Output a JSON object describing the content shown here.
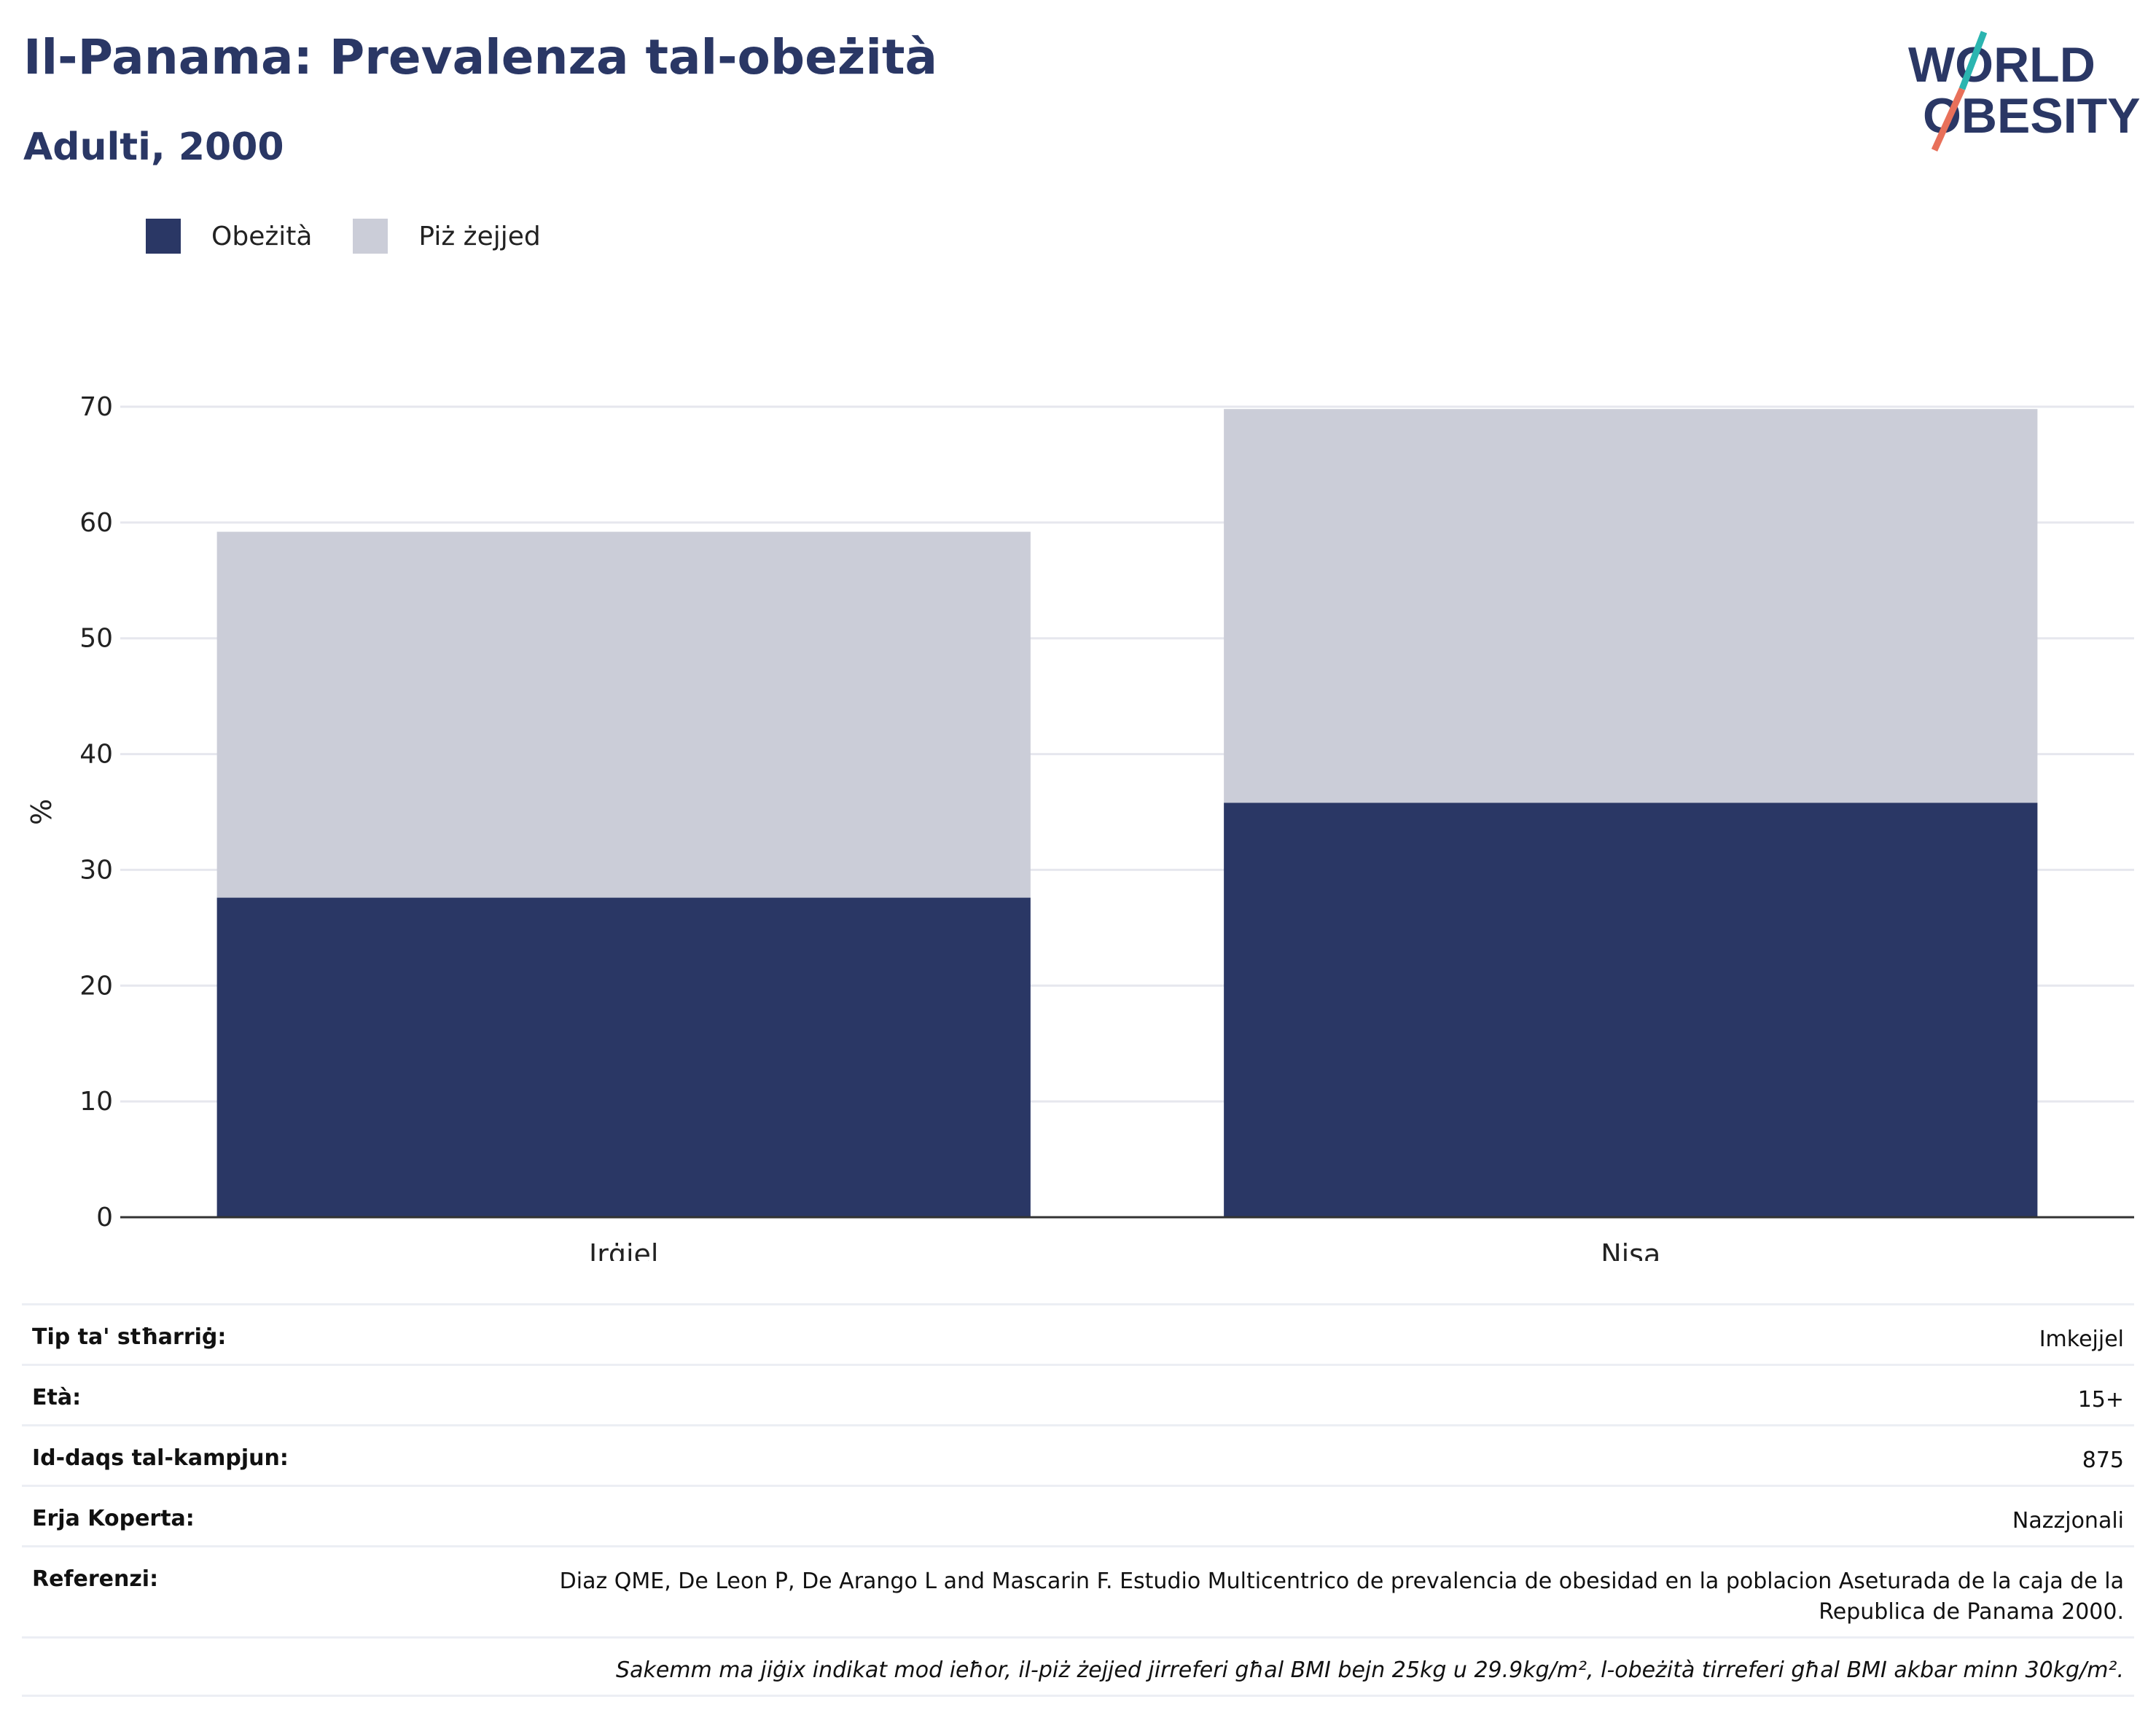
{
  "header": {
    "title": "Il-Panama: Prevalenza tal-obeżità",
    "subtitle": "Adulti, 2000"
  },
  "logo": {
    "line1": "WORLD",
    "line2": "OBESITY",
    "colors": {
      "text": "#2a3765",
      "slash_top": "#2bb5b0",
      "slash_bottom": "#e8705a"
    }
  },
  "colors": {
    "obesity": "#2a3765",
    "overweight": "#cbcdd8",
    "grid": "#e6e7ee",
    "axis": "#333333"
  },
  "chart_data": {
    "type": "bar",
    "stacked": true,
    "categories": [
      "Irġiel",
      "Nisa"
    ],
    "series": [
      {
        "name": "Obeżità",
        "values": [
          27.6,
          35.8
        ]
      },
      {
        "name": "Piż żejjed",
        "values": [
          31.6,
          34.0
        ]
      }
    ],
    "ylabel": "%",
    "ylim": [
      0,
      70
    ],
    "yticks": [
      0,
      10,
      20,
      30,
      40,
      50,
      60,
      70
    ],
    "grid": true,
    "legend_position": "top-left"
  },
  "info": {
    "rows": [
      {
        "label": "Tip ta' stħarriġ:",
        "value": "Imkejjel"
      },
      {
        "label": "Età:",
        "value": "15+"
      },
      {
        "label": "Id-daqs tal-kampjun:",
        "value": "875"
      },
      {
        "label": "Erja Koperta:",
        "value": "Nazzjonali"
      },
      {
        "label": "Referenzi:",
        "value": "Diaz QME, De Leon P, De Arango L and Mascarin F. Estudio Multicentrico de prevalencia de obesidad en la poblacion Aseturada de la caja de la Republica de Panama 2000."
      }
    ],
    "note": "Sakemm ma jiġix indikat mod ieħor, il-piż żejjed jirreferi għal BMI bejn 25kg u 29.9kg/m², l-obeżità tirreferi għal BMI akbar minn 30kg/m²."
  }
}
